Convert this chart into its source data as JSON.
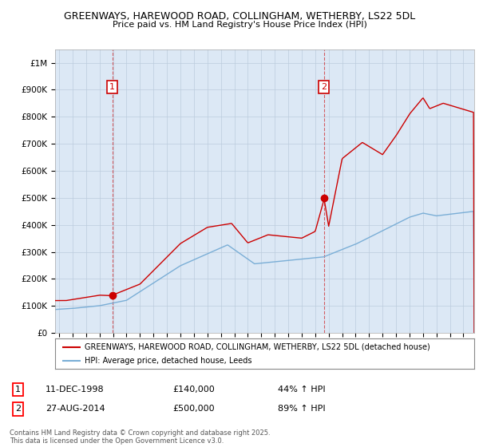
{
  "title_line1": "GREENWAYS, HAREWOOD ROAD, COLLINGHAM, WETHERBY, LS22 5DL",
  "title_line2": "Price paid vs. HM Land Registry's House Price Index (HPI)",
  "background_color": "#f0f4ff",
  "plot_bg_color": "#dce8f5",
  "grid_color": "#bbccdd",
  "red_color": "#cc0000",
  "blue_color": "#7aaed6",
  "ylim": [
    0,
    1050000
  ],
  "yticks": [
    0,
    100000,
    200000,
    300000,
    400000,
    500000,
    600000,
    700000,
    800000,
    900000,
    1000000
  ],
  "ytick_labels": [
    "£0",
    "£100K",
    "£200K",
    "£300K",
    "£400K",
    "£500K",
    "£600K",
    "£700K",
    "£800K",
    "£900K",
    "£1M"
  ],
  "sale1_year": 1998.95,
  "sale1_price": 140000,
  "sale1_label": "1",
  "sale2_year": 2014.65,
  "sale2_price": 500000,
  "sale2_label": "2",
  "legend_red": "GREENWAYS, HAREWOOD ROAD, COLLINGHAM, WETHERBY, LS22 5DL (detached house)",
  "legend_blue": "HPI: Average price, detached house, Leeds",
  "table_row1_num": "1",
  "table_row1_date": "11-DEC-1998",
  "table_row1_price": "£140,000",
  "table_row1_hpi": "44% ↑ HPI",
  "table_row2_num": "2",
  "table_row2_date": "27-AUG-2014",
  "table_row2_price": "£500,000",
  "table_row2_hpi": "89% ↑ HPI",
  "footer": "Contains HM Land Registry data © Crown copyright and database right 2025.\nThis data is licensed under the Open Government Licence v3.0.",
  "xmin": 1994.7,
  "xmax": 2025.8
}
